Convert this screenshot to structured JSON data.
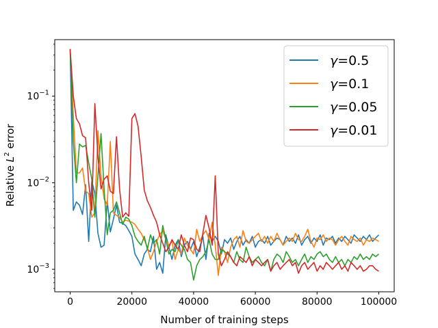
{
  "chart_data": {
    "type": "line",
    "xlabel": "Number of training steps",
    "ylabel_prefix": "Relative ",
    "ylabel_var": "L",
    "ylabel_sup": "2",
    "ylabel_suffix": " error",
    "xlim": [
      -5000,
      105000
    ],
    "ylim": [
      0.00055,
      0.45
    ],
    "yscale": "log",
    "grid": false,
    "legend_loc": "upper right",
    "x_ticks": [
      {
        "value": 0,
        "label": "0"
      },
      {
        "value": 20000,
        "label": "20000"
      },
      {
        "value": 40000,
        "label": "40000"
      },
      {
        "value": 60000,
        "label": "60000"
      },
      {
        "value": 80000,
        "label": "80000"
      },
      {
        "value": 100000,
        "label": "100000"
      }
    ],
    "y_ticks": [
      {
        "value": 0.001,
        "base": "10",
        "exp": "−3"
      },
      {
        "value": 0.01,
        "base": "10",
        "exp": "−2"
      },
      {
        "value": 0.1,
        "base": "10",
        "exp": "−1"
      }
    ],
    "series": [
      {
        "name": "γ=0.5",
        "greek": "γ",
        "value_text": "=0.5",
        "color": "#1f77b4",
        "x": [
          0,
          1000,
          2000,
          3000,
          4000,
          5000,
          6000,
          7000,
          8000,
          9000,
          10000,
          11000,
          12000,
          13000,
          14000,
          15000,
          16000,
          17000,
          18000,
          19000,
          20000,
          21000,
          22000,
          23000,
          24000,
          25000,
          26000,
          27000,
          28000,
          29000,
          30000,
          31000,
          32000,
          33000,
          34000,
          35000,
          36000,
          37000,
          38000,
          39000,
          40000,
          41000,
          42000,
          43000,
          44000,
          45000,
          46000,
          47000,
          48000,
          49000,
          50000,
          51000,
          52000,
          53000,
          54000,
          55000,
          56000,
          57000,
          58000,
          59000,
          60000,
          61000,
          62000,
          63000,
          64000,
          65000,
          66000,
          67000,
          68000,
          69000,
          70000,
          71000,
          72000,
          73000,
          74000,
          75000,
          76000,
          77000,
          78000,
          79000,
          80000,
          81000,
          82000,
          83000,
          84000,
          85000,
          86000,
          87000,
          88000,
          89000,
          90000,
          91000,
          92000,
          93000,
          94000,
          95000,
          96000,
          97000,
          98000,
          99000,
          100000
        ],
        "y": [
          0.35,
          0.0048,
          0.006,
          0.0055,
          0.0043,
          0.0095,
          0.0021,
          0.0105,
          0.0075,
          0.0026,
          0.0018,
          0.0019,
          0.0062,
          0.0027,
          0.0038,
          0.0055,
          0.0035,
          0.0034,
          0.0032,
          0.0028,
          0.0024,
          0.0015,
          0.0013,
          0.0011,
          0.0015,
          0.0017,
          0.0016,
          0.0024,
          0.001,
          0.0012,
          0.0009,
          0.0025,
          0.0018,
          0.0013,
          0.0019,
          0.0022,
          0.0014,
          0.0019,
          0.0021,
          0.0017,
          0.0021,
          0.0014,
          0.0018,
          0.0024,
          0.0013,
          0.0026,
          0.0021,
          0.0024,
          0.0021,
          0.0015,
          0.0022,
          0.002,
          0.0023,
          0.0017,
          0.0021,
          0.0024,
          0.0019,
          0.0022,
          0.002,
          0.0024,
          0.0018,
          0.0021,
          0.0022,
          0.002,
          0.0024,
          0.0019,
          0.0021,
          0.0023,
          0.0022,
          0.0019,
          0.0024,
          0.0021,
          0.0023,
          0.002,
          0.0025,
          0.0019,
          0.0022,
          0.0024,
          0.002,
          0.0023,
          0.0021,
          0.0025,
          0.0019,
          0.0023,
          0.0022,
          0.0024,
          0.002,
          0.0023,
          0.0021,
          0.0024,
          0.0022,
          0.002,
          0.0025,
          0.0023,
          0.0021,
          0.0024,
          0.0022,
          0.0025,
          0.0021,
          0.0023,
          0.0025
        ]
      },
      {
        "name": "γ=0.1",
        "greek": "γ",
        "value_text": "=0.1",
        "color": "#ff7f0e",
        "x": [
          0,
          1000,
          2000,
          3000,
          4000,
          5000,
          6000,
          7000,
          8000,
          9000,
          10000,
          11000,
          12000,
          13000,
          14000,
          15000,
          16000,
          17000,
          18000,
          19000,
          20000,
          21000,
          22000,
          23000,
          24000,
          25000,
          26000,
          27000,
          28000,
          29000,
          30000,
          31000,
          32000,
          33000,
          34000,
          35000,
          36000,
          37000,
          38000,
          39000,
          40000,
          41000,
          42000,
          43000,
          44000,
          45000,
          46000,
          47000,
          48000,
          49000,
          50000,
          51000,
          52000,
          53000,
          54000,
          55000,
          56000,
          57000,
          58000,
          59000,
          60000,
          61000,
          62000,
          63000,
          64000,
          65000,
          66000,
          67000,
          68000,
          69000,
          70000,
          71000,
          72000,
          73000,
          74000,
          75000,
          76000,
          77000,
          78000,
          79000,
          80000,
          81000,
          82000,
          83000,
          84000,
          85000,
          86000,
          87000,
          88000,
          89000,
          90000,
          91000,
          92000,
          93000,
          94000,
          95000,
          96000,
          97000,
          98000,
          99000,
          100000
        ],
        "y": [
          0.35,
          0.06,
          0.013,
          0.013,
          0.0148,
          0.008,
          0.0075,
          0.004,
          0.0045,
          0.04,
          0.012,
          0.0065,
          0.0055,
          0.03,
          0.0045,
          0.0042,
          0.004,
          0.0035,
          0.0037,
          0.0036,
          0.0035,
          0.0033,
          0.0029,
          0.0026,
          0.0022,
          0.0018,
          0.0013,
          0.0016,
          0.0021,
          0.0025,
          0.0028,
          0.0022,
          0.0019,
          0.0021,
          0.0013,
          0.0017,
          0.0015,
          0.0023,
          0.0019,
          0.0017,
          0.0015,
          0.0029,
          0.0021,
          0.0025,
          0.0028,
          0.0022,
          0.0035,
          0.0019,
          0.00085,
          0.0018,
          0.0016,
          0.0012,
          0.0018,
          0.0022,
          0.0024,
          0.0018,
          0.0028,
          0.0021,
          0.002,
          0.0022,
          0.0024,
          0.0026,
          0.0021,
          0.0024,
          0.002,
          0.0024,
          0.0021,
          0.0026,
          0.0022,
          0.0019,
          0.0021,
          0.0023,
          0.0021,
          0.0026,
          0.0022,
          0.0021,
          0.0024,
          0.0029,
          0.0021,
          0.0018,
          0.0023,
          0.0022,
          0.0025,
          0.0021,
          0.0023,
          0.0022,
          0.0019,
          0.0022,
          0.0024,
          0.0021,
          0.0019,
          0.0024,
          0.0022,
          0.0021,
          0.0023,
          0.0019,
          0.0022,
          0.0021,
          0.0023,
          0.0022,
          0.0021
        ]
      },
      {
        "name": "γ=0.05",
        "greek": "γ",
        "value_text": "=0.05",
        "color": "#2ca02c",
        "x": [
          0,
          1000,
          2000,
          3000,
          4000,
          5000,
          6000,
          7000,
          8000,
          9000,
          10000,
          11000,
          12000,
          13000,
          14000,
          15000,
          16000,
          17000,
          18000,
          19000,
          20000,
          21000,
          22000,
          23000,
          24000,
          25000,
          26000,
          27000,
          28000,
          29000,
          30000,
          31000,
          32000,
          33000,
          34000,
          35000,
          36000,
          37000,
          38000,
          39000,
          40000,
          41000,
          42000,
          43000,
          44000,
          45000,
          46000,
          47000,
          48000,
          49000,
          50000,
          51000,
          52000,
          53000,
          54000,
          55000,
          56000,
          57000,
          58000,
          59000,
          60000,
          61000,
          62000,
          63000,
          64000,
          65000,
          66000,
          67000,
          68000,
          69000,
          70000,
          71000,
          72000,
          73000,
          74000,
          75000,
          76000,
          77000,
          78000,
          79000,
          80000,
          81000,
          82000,
          83000,
          84000,
          85000,
          86000,
          87000,
          88000,
          89000,
          90000,
          91000,
          92000,
          93000,
          94000,
          95000,
          96000,
          97000,
          98000,
          99000,
          100000
        ],
        "y": [
          0.35,
          0.03,
          0.01,
          0.028,
          0.026,
          0.027,
          0.017,
          0.011,
          0.004,
          0.012,
          0.037,
          0.0085,
          0.0025,
          0.0045,
          0.0048,
          0.006,
          0.0045,
          0.0033,
          0.004,
          0.0038,
          0.0032,
          0.0024,
          0.0021,
          0.0019,
          0.0024,
          0.0017,
          0.0025,
          0.002,
          0.0022,
          0.0015,
          0.0032,
          0.0022,
          0.0015,
          0.0017,
          0.0016,
          0.0022,
          0.0019,
          0.0017,
          0.0013,
          0.0012,
          0.00075,
          0.0011,
          0.0013,
          0.0014,
          0.0016,
          0.0022,
          0.0015,
          0.0013,
          0.0013,
          0.0017,
          0.0016,
          0.0015,
          0.0014,
          0.0012,
          0.0016,
          0.0013,
          0.0012,
          0.0018,
          0.0014,
          0.0012,
          0.0013,
          0.0014,
          0.0012,
          0.0011,
          0.0013,
          0.00095,
          0.0013,
          0.0015,
          0.0014,
          0.0012,
          0.0016,
          0.0014,
          0.0012,
          0.0013,
          0.0011,
          0.0013,
          0.0015,
          0.0012,
          0.0014,
          0.0013,
          0.0015,
          0.0016,
          0.0014,
          0.0015,
          0.0013,
          0.0012,
          0.0014,
          0.0012,
          0.0013,
          0.0011,
          0.0013,
          0.0012,
          0.0014,
          0.0013,
          0.0015,
          0.0013,
          0.0014,
          0.0013,
          0.0015,
          0.0014,
          0.0015
        ]
      },
      {
        "name": "γ=0.01",
        "greek": "γ",
        "value_text": "=0.01",
        "color": "#d62728",
        "x": [
          0,
          1000,
          2000,
          3000,
          4000,
          5000,
          6000,
          7000,
          8000,
          9000,
          10000,
          11000,
          12000,
          13000,
          14000,
          15000,
          16000,
          17000,
          18000,
          19000,
          20000,
          21000,
          22000,
          23000,
          24000,
          25000,
          26000,
          27000,
          28000,
          29000,
          30000,
          31000,
          32000,
          33000,
          34000,
          35000,
          36000,
          37000,
          38000,
          39000,
          40000,
          41000,
          42000,
          43000,
          44000,
          45000,
          46000,
          47000,
          48000,
          49000,
          50000,
          51000,
          52000,
          53000,
          54000,
          55000,
          56000,
          57000,
          58000,
          59000,
          60000,
          61000,
          62000,
          63000,
          64000,
          65000,
          66000,
          67000,
          68000,
          69000,
          70000,
          71000,
          72000,
          73000,
          74000,
          75000,
          76000,
          77000,
          78000,
          79000,
          80000,
          81000,
          82000,
          83000,
          84000,
          85000,
          86000,
          87000,
          88000,
          89000,
          90000,
          91000,
          92000,
          93000,
          94000,
          95000,
          96000,
          97000,
          98000,
          99000,
          100000
        ],
        "y": [
          0.35,
          0.1,
          0.055,
          0.048,
          0.035,
          0.033,
          0.01,
          0.0048,
          0.082,
          0.02,
          0.0085,
          0.011,
          0.012,
          0.008,
          0.0075,
          0.034,
          0.0085,
          0.004,
          0.0045,
          0.0041,
          0.055,
          0.063,
          0.045,
          0.02,
          0.0082,
          0.0062,
          0.0052,
          0.0042,
          0.0035,
          0.0025,
          0.002,
          0.0016,
          0.0018,
          0.0022,
          0.0019,
          0.0017,
          0.0025,
          0.0019,
          0.0016,
          0.0023,
          0.0022,
          0.0017,
          0.0016,
          0.0026,
          0.0042,
          0.003,
          0.0019,
          0.012,
          0.0015,
          0.0011,
          0.0013,
          0.0016,
          0.0014,
          0.0012,
          0.0011,
          0.0014,
          0.0013,
          0.0012,
          0.0014,
          0.0011,
          0.0013,
          0.0012,
          0.0011,
          0.0012,
          0.0013,
          0.00095,
          0.0011,
          0.0012,
          0.001,
          0.0011,
          0.0012,
          0.0013,
          0.0011,
          0.0012,
          0.0009,
          0.0011,
          0.0012,
          0.001,
          0.0011,
          0.0012,
          0.00095,
          0.0011,
          0.001,
          0.0012,
          0.0011,
          0.001,
          0.0011,
          0.0012,
          0.001,
          0.0011,
          0.00095,
          0.0012,
          0.0011,
          0.001,
          0.0011,
          0.00095,
          0.001,
          0.0011,
          0.0011,
          0.001,
          0.00095
        ]
      }
    ]
  }
}
